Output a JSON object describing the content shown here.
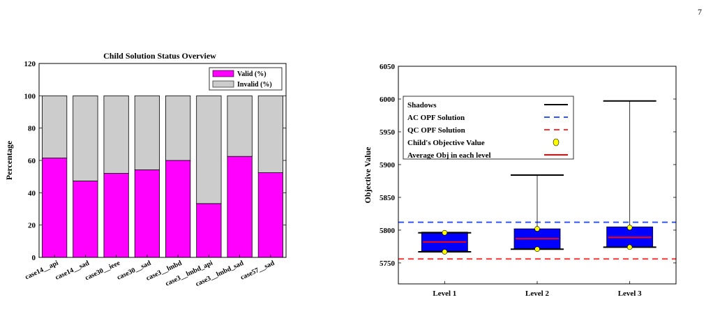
{
  "page": {
    "number": "7"
  },
  "chart_data": [
    {
      "type": "bar",
      "stacked": true,
      "title": "Child Solution Status Overview",
      "xlabel": "",
      "ylabel": "Percentage",
      "ylim": [
        0,
        120
      ],
      "yticks": [
        0,
        20,
        40,
        60,
        80,
        100,
        120
      ],
      "categories": [
        "case14__api",
        "case14__sad",
        "case30__ieee",
        "case30__sad",
        "case3__lmbd",
        "case3__lmbd_api",
        "case3__lmbd_sad",
        "case57__sad"
      ],
      "series": [
        {
          "name": "Valid (%)",
          "color": "#ff00ff",
          "values": [
            61.5,
            47.3,
            52.0,
            54.2,
            60.0,
            33.3,
            62.5,
            52.4
          ]
        },
        {
          "name": "Invalid (%)",
          "color": "#cccccc",
          "values": [
            38.5,
            52.7,
            48.0,
            45.8,
            40.0,
            66.7,
            37.5,
            47.6
          ]
        }
      ],
      "legend": "top-right",
      "grid": false
    },
    {
      "type": "box",
      "title": "",
      "xlabel": "",
      "ylabel": "Objective Value",
      "ylim": [
        5718,
        6050
      ],
      "yticks": [
        5750,
        5800,
        5850,
        5900,
        5950,
        6000,
        6050
      ],
      "categories": [
        "Level 1",
        "Level 2",
        "Level 3"
      ],
      "boxes": [
        {
          "q1": 5768,
          "q3": 5797,
          "mean": 5782,
          "shadow_low": 5767,
          "shadow_high": 5796,
          "points": [
            5796,
            5767
          ]
        },
        {
          "q1": 5772,
          "q3": 5802,
          "mean": 5787,
          "shadow_low": 5771,
          "shadow_high": 5884,
          "points": [
            5802,
            5771
          ]
        },
        {
          "q1": 5774,
          "q3": 5805,
          "mean": 5789,
          "shadow_low": 5774,
          "shadow_high": 5997,
          "points": [
            5804,
            5774
          ]
        }
      ],
      "reference_lines": [
        {
          "name": "AC OPF Solution",
          "value": 5812,
          "color": "#3355ff",
          "style": "dashed"
        },
        {
          "name": "QC OPF Solution",
          "value": 5756,
          "color": "#ff3333",
          "style": "dashed"
        }
      ],
      "legend_items": [
        {
          "name": "Shadows",
          "kind": "line",
          "color": "#000000"
        },
        {
          "name": "AC OPF Solution",
          "kind": "dashed",
          "color": "#3355ff"
        },
        {
          "name": "QC OPF Solution",
          "kind": "dashed",
          "color": "#ff3333"
        },
        {
          "name": "Child's Objective Value",
          "kind": "dot",
          "color": "#ffff00"
        },
        {
          "name": "Average Obj in each level",
          "kind": "line",
          "color": "#ff0000"
        }
      ],
      "box_color": "#0000ff",
      "legend": "top-left",
      "grid": false
    }
  ]
}
